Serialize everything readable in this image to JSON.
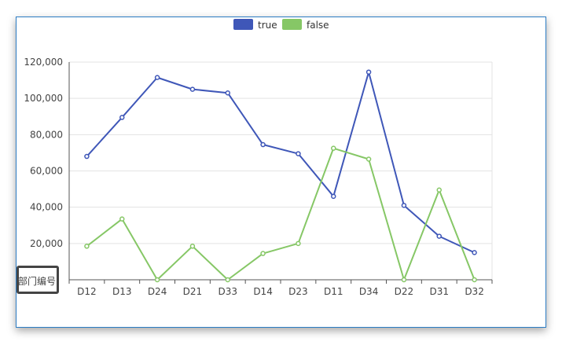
{
  "chart_data": {
    "type": "line",
    "categories": [
      "D12",
      "D13",
      "D24",
      "D21",
      "D33",
      "D14",
      "D23",
      "D11",
      "D34",
      "D22",
      "D31",
      "D32"
    ],
    "series": [
      {
        "name": "true",
        "color": "#3f57b8",
        "values": [
          68000,
          89500,
          111500,
          105000,
          103000,
          74500,
          69500,
          46000,
          114500,
          41000,
          24000,
          15000
        ]
      },
      {
        "name": "false",
        "color": "#86c766",
        "values": [
          18500,
          33500,
          0,
          18500,
          0,
          14500,
          20000,
          72500,
          66500,
          0,
          49500,
          0
        ]
      }
    ],
    "ylim": [
      0,
      120000
    ],
    "yticks": [
      "0",
      "20,000",
      "40,000",
      "60,000",
      "80,000",
      "100,000",
      "120,000"
    ],
    "xlabel": "部门编号(",
    "ylabel": "",
    "legend": "top-center",
    "grid": true
  }
}
